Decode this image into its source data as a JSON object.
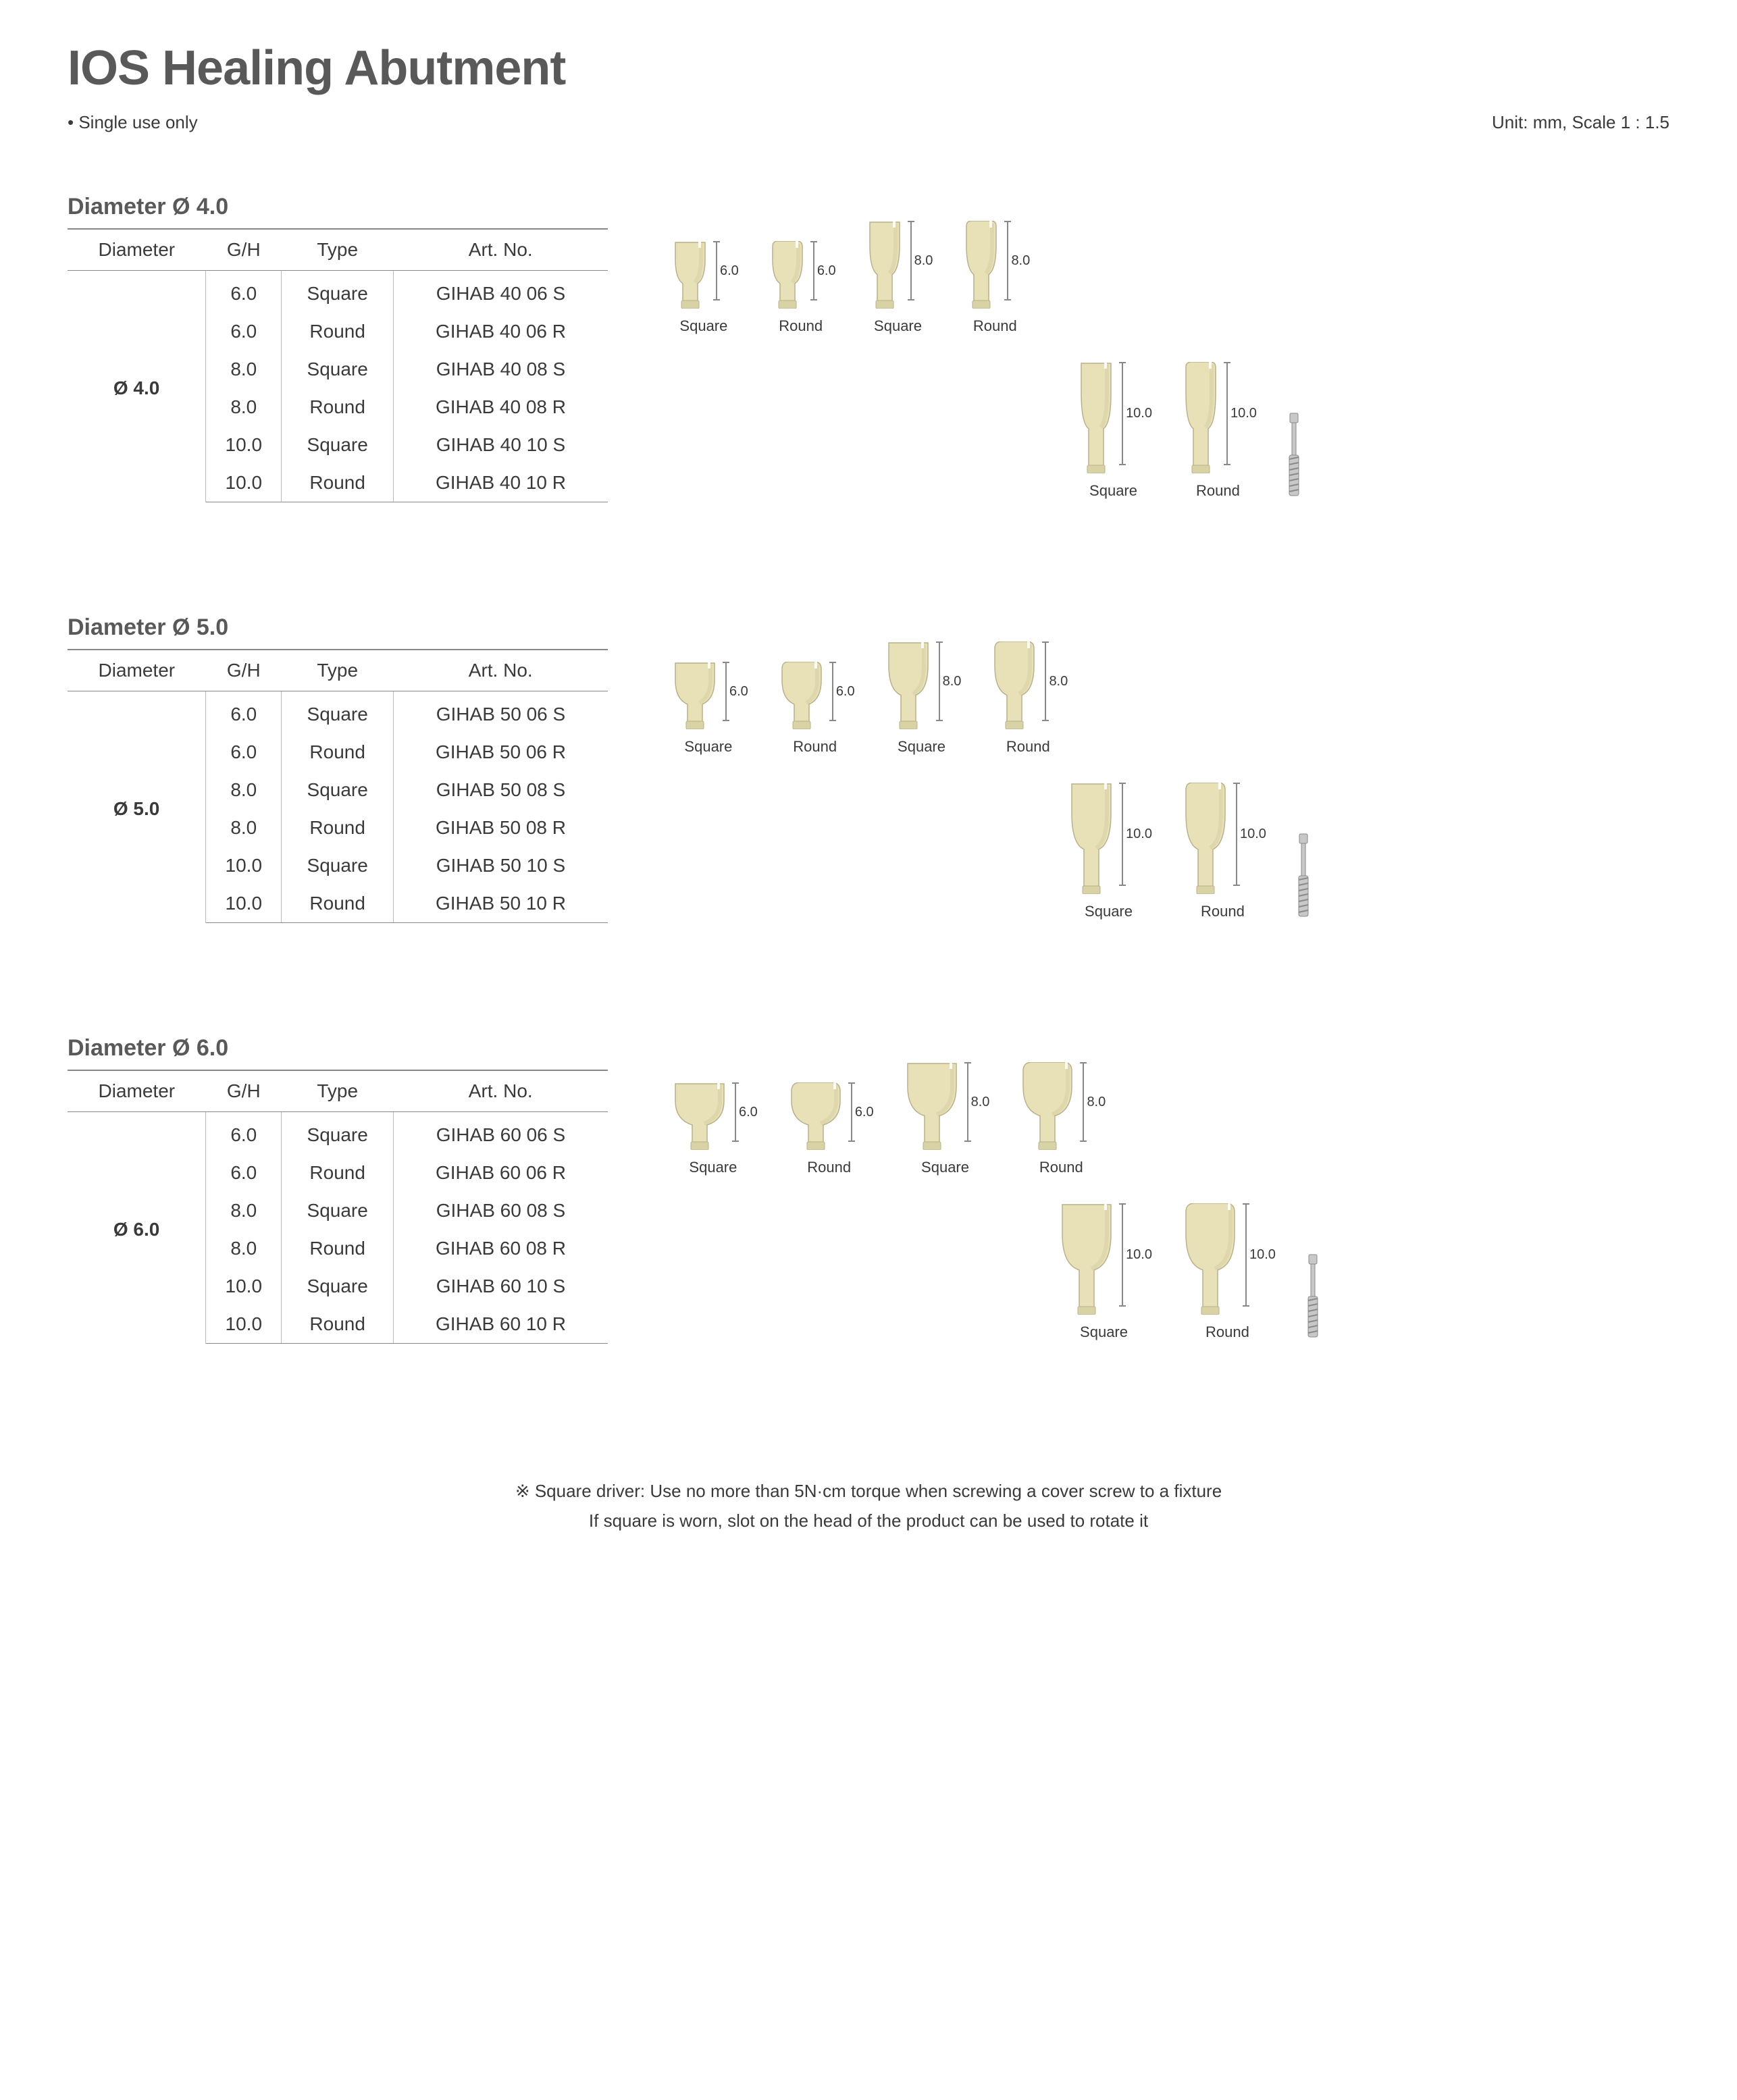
{
  "title": "IOS Healing Abutment",
  "note_left": "• Single use only",
  "note_right": "Unit: mm, Scale 1 : 1.5",
  "table_headers": [
    "Diameter",
    "G/H",
    "Type",
    "Art. No."
  ],
  "abutment_colors": {
    "body_fill": "#e8e1b8",
    "body_stroke": "#b8b18a",
    "shadow": "#d5ce9f",
    "base": "#d8d2a5",
    "screw_fill": "#c8c8c8",
    "screw_stroke": "#8a8a8a"
  },
  "sections": [
    {
      "title": "Diameter Ø 4.0",
      "diameter_label": "Ø 4.0",
      "top_width": 44,
      "rows": [
        {
          "gh": "6.0",
          "type": "Square",
          "art": "GIHAB 40 06 S"
        },
        {
          "gh": "6.0",
          "type": "Round",
          "art": "GIHAB 40 06 R"
        },
        {
          "gh": "8.0",
          "type": "Square",
          "art": "GIHAB 40 08 S"
        },
        {
          "gh": "8.0",
          "type": "Round",
          "art": "GIHAB 40 08 R"
        },
        {
          "gh": "10.0",
          "type": "Square",
          "art": "GIHAB 40 10 S"
        },
        {
          "gh": "10.0",
          "type": "Round",
          "art": "GIHAB 40 10 R"
        }
      ],
      "illus_rows": [
        [
          {
            "label": "Square",
            "h": 100,
            "dim": "6.0"
          },
          {
            "label": "Round",
            "h": 100,
            "dim": "6.0"
          },
          {
            "label": "Square",
            "h": 130,
            "dim": "8.0"
          },
          {
            "label": "Round",
            "h": 130,
            "dim": "8.0"
          }
        ],
        [
          {
            "label": "Square",
            "h": 165,
            "dim": "10.0"
          },
          {
            "label": "Round",
            "h": 165,
            "dim": "10.0"
          },
          {
            "screw": true
          }
        ]
      ]
    },
    {
      "title": "Diameter Ø 5.0",
      "diameter_label": "Ø 5.0",
      "top_width": 58,
      "rows": [
        {
          "gh": "6.0",
          "type": "Square",
          "art": "GIHAB 50 06 S"
        },
        {
          "gh": "6.0",
          "type": "Round",
          "art": "GIHAB 50 06 R"
        },
        {
          "gh": "8.0",
          "type": "Square",
          "art": "GIHAB 50 08 S"
        },
        {
          "gh": "8.0",
          "type": "Round",
          "art": "GIHAB 50 08 R"
        },
        {
          "gh": "10.0",
          "type": "Square",
          "art": "GIHAB 50 10 S"
        },
        {
          "gh": "10.0",
          "type": "Round",
          "art": "GIHAB 50 10 R"
        }
      ],
      "illus_rows": [
        [
          {
            "label": "Square",
            "h": 100,
            "dim": "6.0"
          },
          {
            "label": "Round",
            "h": 100,
            "dim": "6.0"
          },
          {
            "label": "Square",
            "h": 130,
            "dim": "8.0"
          },
          {
            "label": "Round",
            "h": 130,
            "dim": "8.0"
          }
        ],
        [
          {
            "label": "Square",
            "h": 165,
            "dim": "10.0"
          },
          {
            "label": "Round",
            "h": 165,
            "dim": "10.0"
          },
          {
            "screw": true
          }
        ]
      ]
    },
    {
      "title": "Diameter Ø 6.0",
      "diameter_label": "Ø 6.0",
      "top_width": 72,
      "rows": [
        {
          "gh": "6.0",
          "type": "Square",
          "art": "GIHAB 60 06 S"
        },
        {
          "gh": "6.0",
          "type": "Round",
          "art": "GIHAB 60 06 R"
        },
        {
          "gh": "8.0",
          "type": "Square",
          "art": "GIHAB 60 08 S"
        },
        {
          "gh": "8.0",
          "type": "Round",
          "art": "GIHAB 60 08 R"
        },
        {
          "gh": "10.0",
          "type": "Square",
          "art": "GIHAB 60 10 S"
        },
        {
          "gh": "10.0",
          "type": "Round",
          "art": "GIHAB 60 10 R"
        }
      ],
      "illus_rows": [
        [
          {
            "label": "Square",
            "h": 100,
            "dim": "6.0"
          },
          {
            "label": "Round",
            "h": 100,
            "dim": "6.0"
          },
          {
            "label": "Square",
            "h": 130,
            "dim": "8.0"
          },
          {
            "label": "Round",
            "h": 130,
            "dim": "8.0"
          }
        ],
        [
          {
            "label": "Square",
            "h": 165,
            "dim": "10.0"
          },
          {
            "label": "Round",
            "h": 165,
            "dim": "10.0"
          },
          {
            "screw": true
          }
        ]
      ]
    }
  ],
  "footnote_line1": "※ Square driver: Use no more than 5N·cm torque when screwing a cover screw to a fixture",
  "footnote_line2": "If square is worn, slot on the head of the product can be used to rotate it"
}
